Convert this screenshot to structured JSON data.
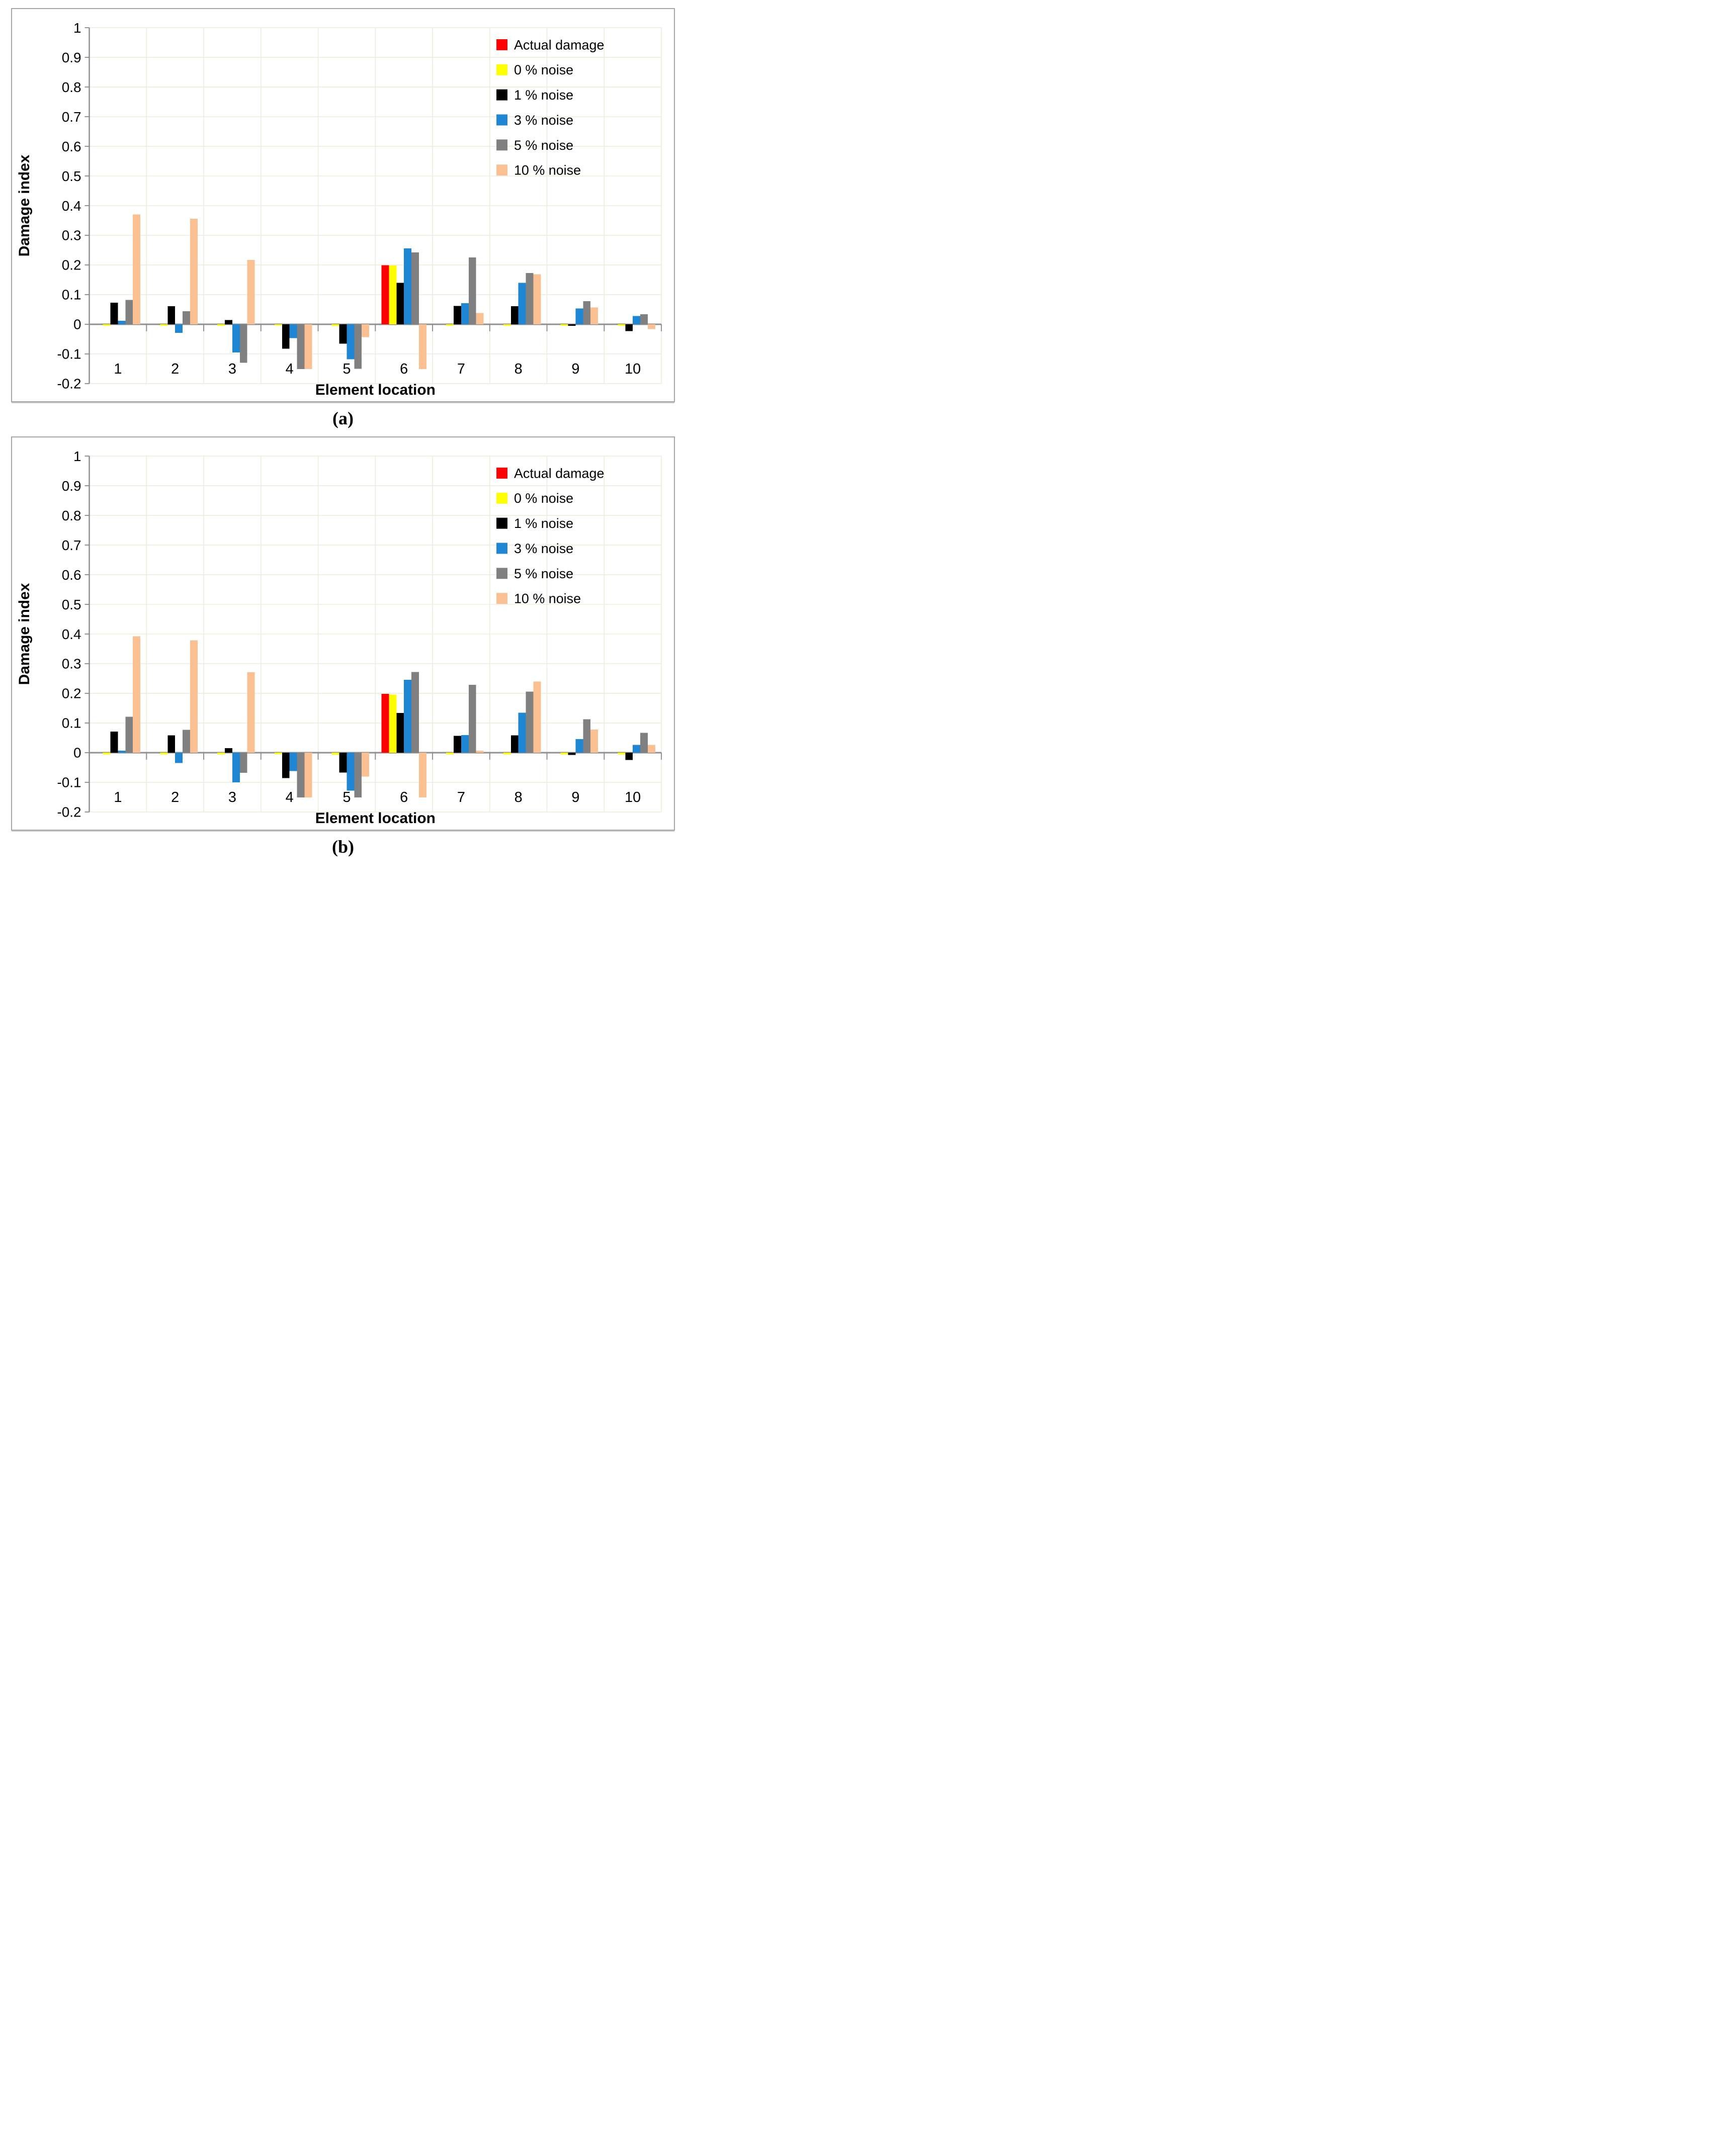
{
  "captions": {
    "a": "(a)",
    "b": "(b)"
  },
  "palette": {
    "grid": "#eeecdf",
    "axis": "#8f8f8f",
    "box_border": "#a6a6a6",
    "background": "#ffffff",
    "text": "#000000"
  },
  "legend": {
    "position": "top-right",
    "items": [
      {
        "label": "Actual damage",
        "color": "#ff0000"
      },
      {
        "label": "0 % noise",
        "color": "#ffff00"
      },
      {
        "label": "1 % noise",
        "color": "#000000"
      },
      {
        "label": "3 % noise",
        "color": "#1e86d2"
      },
      {
        "label": "5 % noise",
        "color": "#808080"
      },
      {
        "label": "10 % noise",
        "color": "#fbc092"
      }
    ]
  },
  "chart_data": [
    {
      "id": "chart-a",
      "type": "bar",
      "title": "",
      "xlabel": "Element location",
      "ylabel": "Damage index",
      "ylim": [
        -0.2,
        1.0
      ],
      "ytick_step": 0.1,
      "ytick_labels": [
        "1",
        "0.9",
        "0.8",
        "0.7",
        "0.6",
        "0.5",
        "0.4",
        "0.3",
        "0.2",
        "0.1",
        "0",
        "-0.1",
        "-0.2"
      ],
      "categories": [
        "1",
        "2",
        "3",
        "4",
        "5",
        "6",
        "7",
        "8",
        "9",
        "10"
      ],
      "grid": true,
      "legend_position": "top-right",
      "series": [
        {
          "name": "Actual damage",
          "color": "#ff0000",
          "values": [
            0,
            0,
            0,
            0,
            0,
            0.199,
            0,
            0,
            0,
            0
          ]
        },
        {
          "name": "0 % noise",
          "color": "#ffff00",
          "values": [
            -0.005,
            -0.005,
            -0.005,
            -0.004,
            -0.006,
            0.198,
            -0.005,
            -0.005,
            -0.005,
            -0.005
          ]
        },
        {
          "name": "1 % noise",
          "color": "#000000",
          "values": [
            0.073,
            0.061,
            0.014,
            -0.082,
            -0.065,
            0.14,
            0.062,
            0.061,
            -0.005,
            -0.023
          ]
        },
        {
          "name": "3 % noise",
          "color": "#1e86d2",
          "values": [
            0.012,
            -0.029,
            -0.095,
            -0.047,
            -0.118,
            0.256,
            0.071,
            0.14,
            0.053,
            0.028
          ]
        },
        {
          "name": "5 % noise",
          "color": "#808080",
          "values": [
            0.082,
            0.044,
            -0.13,
            -0.151,
            -0.15,
            0.242,
            0.225,
            0.173,
            0.078,
            0.034
          ]
        },
        {
          "name": "10 % noise",
          "color": "#fbc092",
          "values": [
            0.37,
            0.356,
            0.217,
            -0.151,
            -0.043,
            -0.151,
            0.038,
            0.169,
            0.057,
            -0.016
          ]
        }
      ]
    },
    {
      "id": "chart-b",
      "type": "bar",
      "title": "",
      "xlabel": "Element location",
      "ylabel": "Damage index",
      "ylim": [
        -0.2,
        1.0
      ],
      "ytick_step": 0.1,
      "ytick_labels": [
        "1",
        "0.9",
        "0.8",
        "0.7",
        "0.6",
        "0.5",
        "0.4",
        "0.3",
        "0.2",
        "0.1",
        "0",
        "-0.1",
        "-0.2"
      ],
      "categories": [
        "1",
        "2",
        "3",
        "4",
        "5",
        "6",
        "7",
        "8",
        "9",
        "10"
      ],
      "grid": true,
      "legend_position": "top-right",
      "series": [
        {
          "name": "Actual damage",
          "color": "#ff0000",
          "values": [
            0,
            0,
            0,
            0,
            0,
            0.198,
            0,
            0,
            0,
            0
          ]
        },
        {
          "name": "0 % noise",
          "color": "#ffff00",
          "values": [
            -0.006,
            -0.006,
            -0.006,
            -0.005,
            -0.007,
            0.196,
            -0.006,
            -0.006,
            -0.006,
            -0.006
          ]
        },
        {
          "name": "1 % noise",
          "color": "#000000",
          "values": [
            0.071,
            0.058,
            0.015,
            -0.086,
            -0.067,
            0.134,
            0.057,
            0.058,
            -0.008,
            -0.025
          ]
        },
        {
          "name": "3 % noise",
          "color": "#1e86d2",
          "values": [
            0.007,
            -0.035,
            -0.1,
            -0.062,
            -0.128,
            0.246,
            0.059,
            0.135,
            0.046,
            0.026
          ]
        },
        {
          "name": "5 % noise",
          "color": "#808080",
          "values": [
            0.121,
            0.077,
            -0.068,
            -0.151,
            -0.151,
            0.272,
            0.229,
            0.206,
            0.113,
            0.067
          ]
        },
        {
          "name": "10 % noise",
          "color": "#fbc092",
          "values": [
            0.392,
            0.379,
            0.271,
            -0.151,
            -0.081,
            -0.151,
            0.007,
            0.24,
            0.078,
            0.026
          ]
        }
      ]
    }
  ]
}
